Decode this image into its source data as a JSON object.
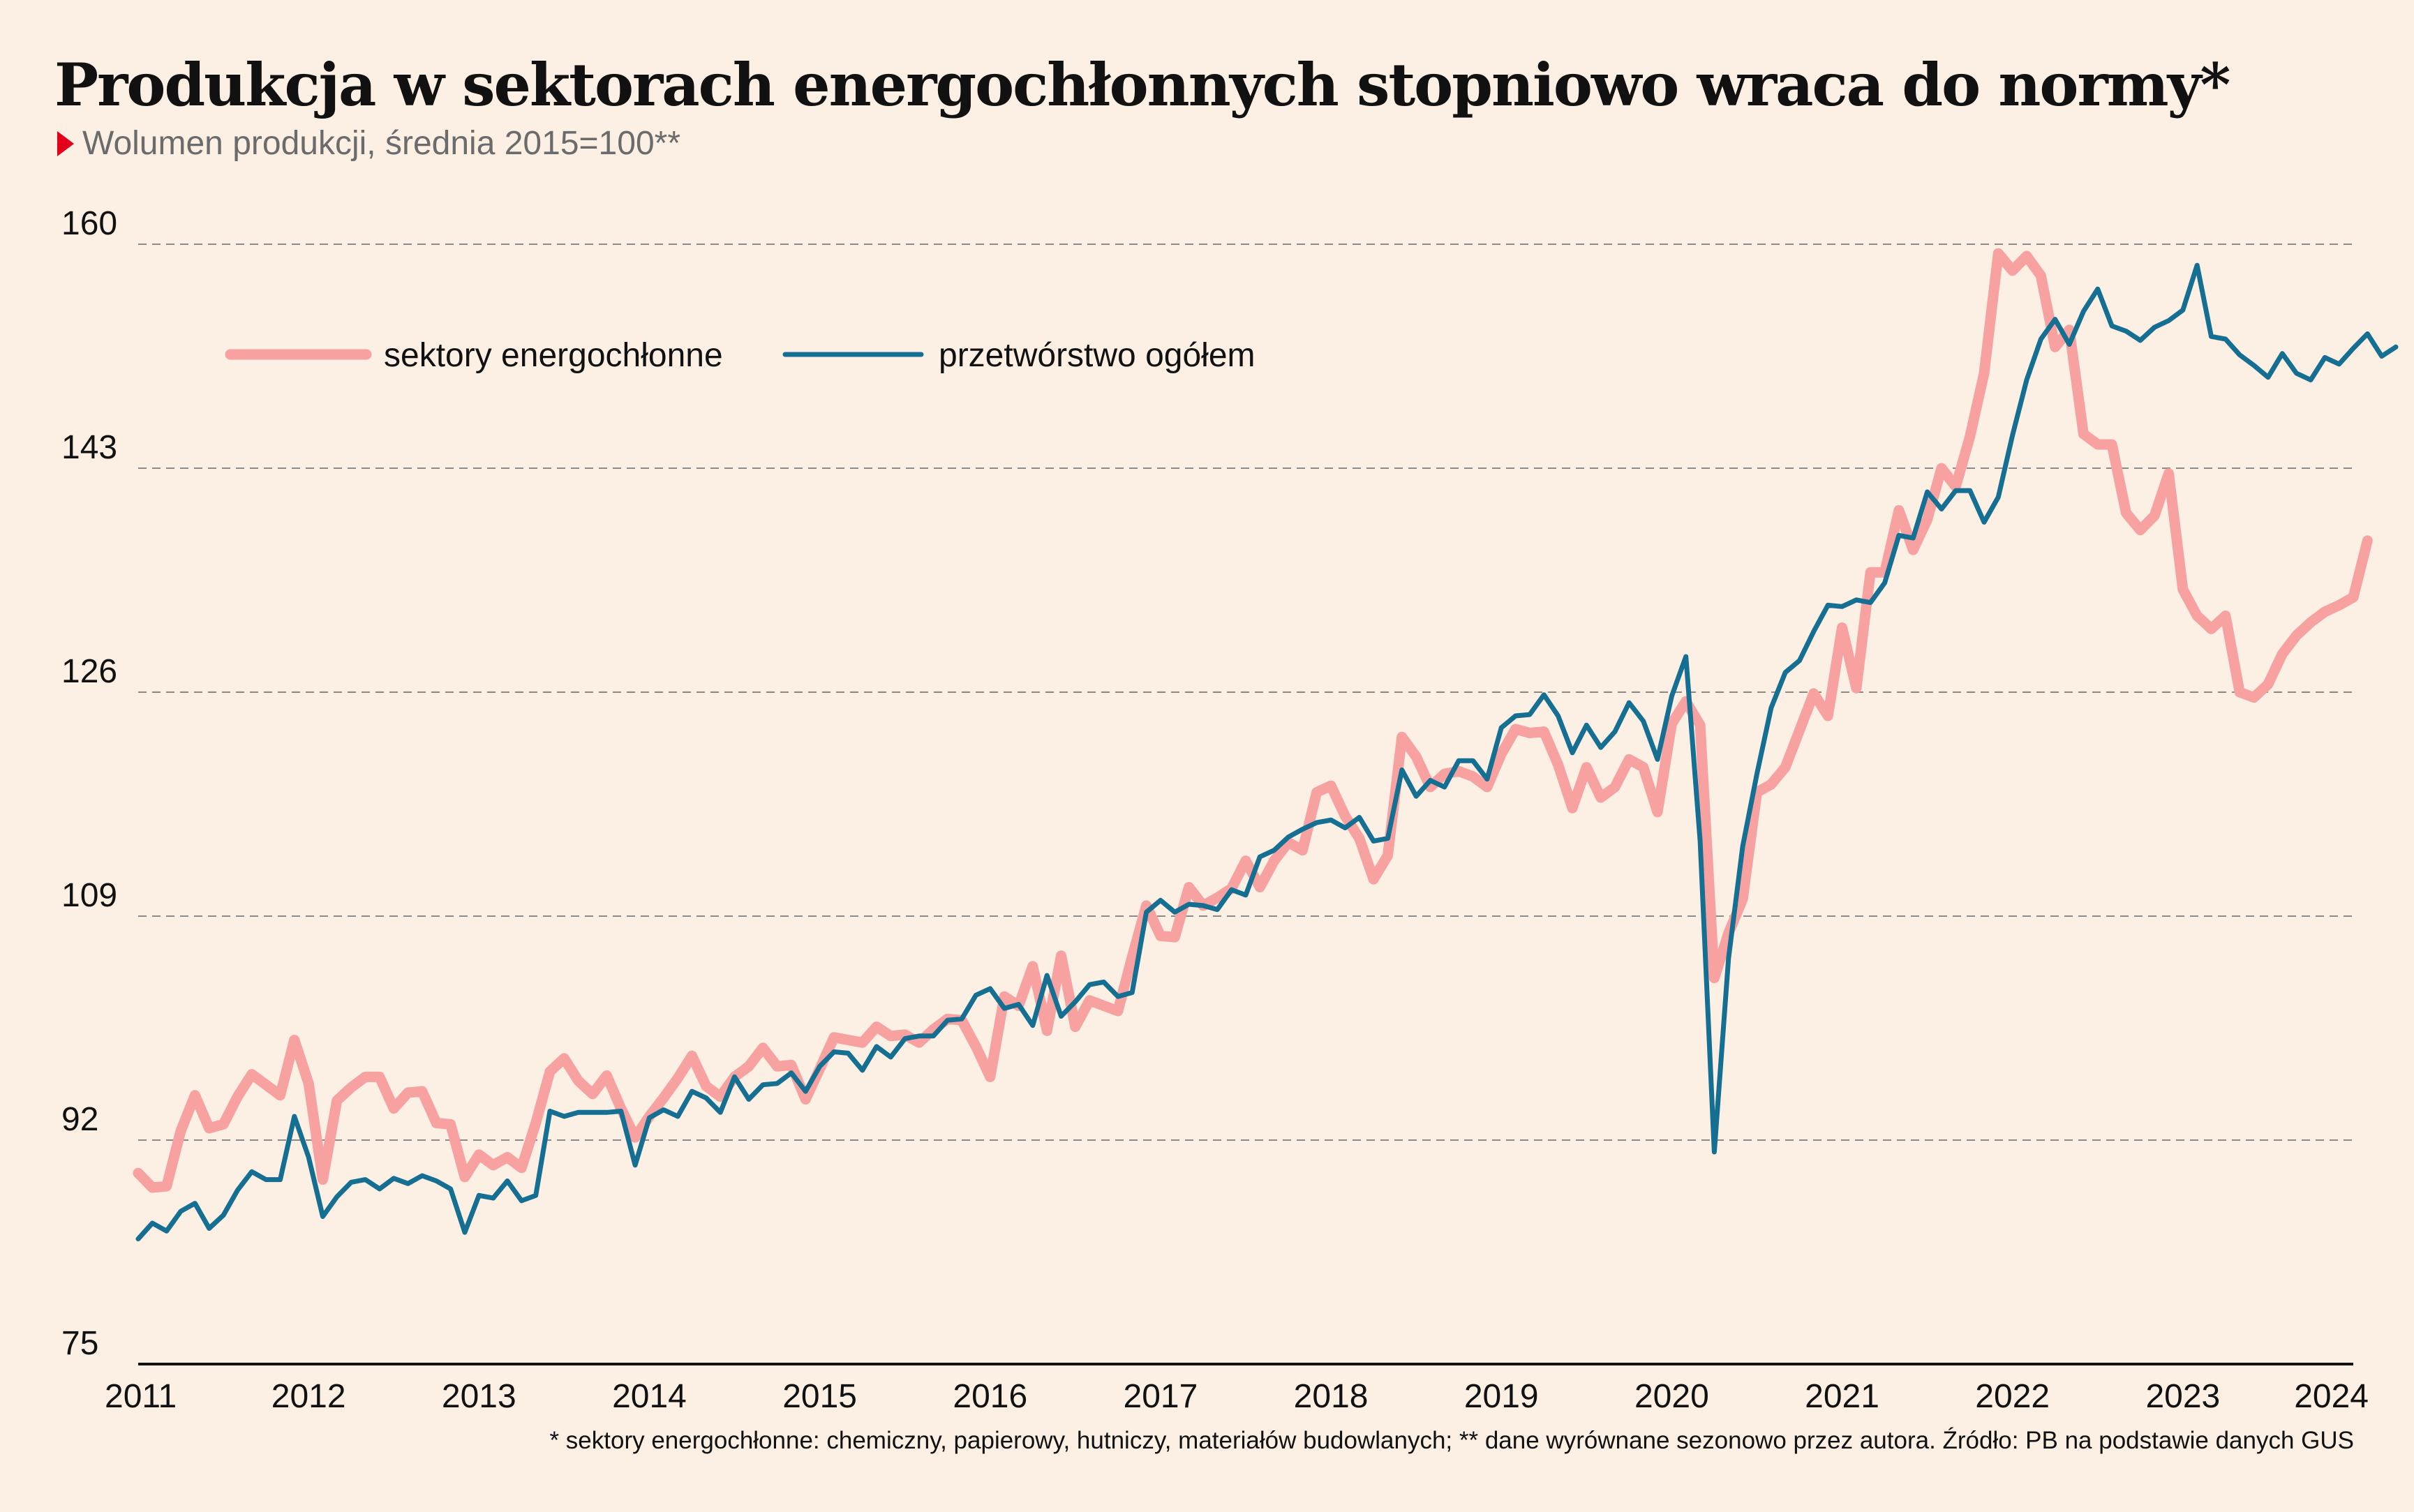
{
  "title": "Produkcja w sektorach energochłonnych stopniowo wraca do normy*",
  "subtitle": "Wolumen produkcji, średnia 2015=100**",
  "footnote": "* sektory energochłonne: chemiczny, papierowy, hutniczy, materiałów budowlanych; ** dane wyrównane sezonowo przez autora. Źródło: PB na podstawie danych GUS",
  "colors": {
    "background": "#fcefe3",
    "energy": "#f7a1a1",
    "manufacturing": "#146f92",
    "accent": "#e3001b",
    "grid": "#8a8a8a"
  },
  "chart_data": {
    "type": "line",
    "x_start": "2011-01",
    "x_step": "month",
    "x_ticks": [
      "2011",
      "2012",
      "2013",
      "2014",
      "2015",
      "2016",
      "2017",
      "2018",
      "2019",
      "2020",
      "2021",
      "2022",
      "2023",
      "2024"
    ],
    "ylim": [
      75,
      160
    ],
    "y_ticks": [
      75,
      92,
      109,
      126,
      143,
      160
    ],
    "grid": "horizontal dashed",
    "legend": "top-left",
    "series": [
      {
        "name": "sektory energochłonne",
        "color": "#f7a1a1",
        "values": [
          89.5,
          88.4,
          88.5,
          92.7,
          95.4,
          92.9,
          93.2,
          95.3,
          97.0,
          96.2,
          95.4,
          99.6,
          96.3,
          89.0,
          95.0,
          96.0,
          96.8,
          96.8,
          94.4,
          95.6,
          95.7,
          93.3,
          93.2,
          89.2,
          90.9,
          90.1,
          90.7,
          89.9,
          93.3,
          97.2,
          98.2,
          96.5,
          95.5,
          96.9,
          94.4,
          92.2,
          93.8,
          95.2,
          96.7,
          98.4,
          96.1,
          95.3,
          96.8,
          97.6,
          99.0,
          97.6,
          97.7,
          95.1,
          97.4,
          99.8,
          99.6,
          99.4,
          100.6,
          99.9,
          100.0,
          99.4,
          100.4,
          101.2,
          101.1,
          99.1,
          96.8,
          102.9,
          102.2,
          105.2,
          100.3,
          106.0,
          100.6,
          102.6,
          102.2,
          101.8,
          105.9,
          109.8,
          107.5,
          107.4,
          111.2,
          109.8,
          110.4,
          111.1,
          113.2,
          111.2,
          113.2,
          114.6,
          114.0,
          118.4,
          118.9,
          116.6,
          114.9,
          111.8,
          113.6,
          122.6,
          121.1,
          118.8,
          119.8,
          120.0,
          119.6,
          118.8,
          121.3,
          123.2,
          122.9,
          123.0,
          120.5,
          117.2,
          120.3,
          118.0,
          118.8,
          120.9,
          120.3,
          116.9,
          123.6,
          125.3,
          123.5,
          104.3,
          107.7,
          110.3,
          118.4,
          119.0,
          120.3,
          123.1,
          125.9,
          124.2,
          130.9,
          126.3,
          135.1,
          135.1,
          139.8,
          136.8,
          139.1,
          143.0,
          141.6,
          145.4,
          150.2,
          159.3,
          158.0,
          159.1,
          157.6,
          152.2,
          153.5,
          145.6,
          144.8,
          144.8,
          139.6,
          138.3,
          139.4,
          142.6,
          133.8,
          131.8,
          130.8,
          131.8,
          126.0,
          125.6,
          126.6,
          128.9,
          130.3,
          131.3,
          132.1,
          132.6,
          133.2,
          137.5
        ]
      },
      {
        "name": "przetwórstwo ogółem",
        "color": "#146f92",
        "values": [
          84.5,
          85.7,
          85.1,
          86.6,
          87.2,
          85.3,
          86.3,
          88.2,
          89.6,
          89.0,
          89.0,
          93.8,
          90.7,
          86.2,
          87.7,
          88.8,
          89.0,
          88.3,
          89.1,
          88.7,
          89.3,
          88.9,
          88.3,
          85.0,
          87.8,
          87.6,
          88.9,
          87.4,
          87.8,
          94.2,
          93.8,
          94.1,
          94.1,
          94.1,
          94.2,
          90.1,
          93.7,
          94.3,
          93.8,
          95.7,
          95.2,
          94.1,
          96.8,
          95.1,
          96.2,
          96.3,
          97.1,
          95.7,
          97.6,
          98.7,
          98.6,
          97.3,
          99.1,
          98.3,
          99.7,
          99.9,
          99.9,
          101.1,
          101.2,
          103.0,
          103.5,
          102.0,
          102.3,
          100.7,
          104.5,
          101.4,
          102.5,
          103.8,
          104.0,
          102.9,
          103.2,
          109.3,
          110.2,
          109.3,
          109.9,
          109.8,
          109.5,
          111.0,
          110.6,
          113.5,
          114.0,
          115.0,
          115.6,
          116.1,
          116.3,
          115.7,
          116.5,
          114.7,
          114.9,
          120.1,
          118.1,
          119.3,
          118.8,
          120.8,
          120.8,
          119.4,
          123.3,
          124.2,
          124.3,
          125.8,
          124.2,
          121.4,
          123.5,
          121.8,
          123.0,
          125.2,
          123.8,
          120.9,
          125.7,
          128.7,
          114.7,
          91.1,
          105.8,
          114.3,
          119.8,
          124.8,
          127.5,
          128.4,
          130.6,
          132.6,
          132.5,
          133.0,
          132.8,
          134.3,
          137.9,
          137.7,
          141.2,
          139.9,
          141.3,
          141.3,
          138.9,
          140.8,
          145.5,
          149.7,
          152.8,
          154.3,
          152.4,
          154.9,
          156.6,
          153.8,
          153.4,
          152.7,
          153.7,
          154.2,
          155.0,
          158.4,
          153.0,
          152.8,
          151.6,
          150.8,
          149.9,
          151.7,
          150.2,
          149.7,
          151.4,
          150.9,
          152.1,
          153.2,
          151.5,
          152.2
        ]
      }
    ]
  }
}
